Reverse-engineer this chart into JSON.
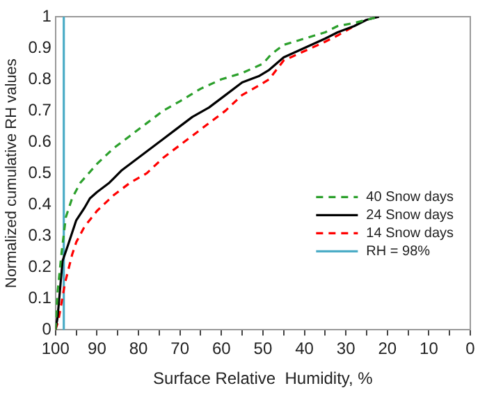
{
  "chart_data": {
    "type": "line",
    "xlabel": "Surface Relative  Humidity, %",
    "ylabel": "Normalized cumulative RH values",
    "xlim": [
      100,
      0
    ],
    "ylim": [
      0,
      1
    ],
    "xticks": [
      100,
      {
        "value": 95,
        "label": null
      },
      90,
      {
        "value": 85,
        "label": null
      },
      80,
      {
        "value": 75,
        "label": null
      },
      70,
      {
        "value": 65,
        "label": null
      },
      60,
      {
        "value": 55,
        "label": null
      },
      50,
      {
        "value": 45,
        "label": null
      },
      40,
      {
        "value": 35,
        "label": null
      },
      30,
      {
        "value": 25,
        "label": null
      },
      20,
      {
        "value": 15,
        "label": null
      },
      10,
      {
        "value": 5,
        "label": null
      },
      0
    ],
    "yticks": [
      0,
      0.1,
      0.2,
      0.3,
      0.4,
      0.5,
      0.6,
      0.7,
      0.8,
      0.9,
      1
    ],
    "grid": false,
    "legend": "bottom right",
    "marker": "none",
    "series": [
      {
        "name": "40 Snow days",
        "color": "#2ca02c",
        "line_style": "dashed",
        "x": [
          100,
          99.5,
          98.5,
          97.5,
          96,
          94,
          92,
          90,
          86,
          82,
          78,
          74,
          70,
          65,
          60,
          55,
          50,
          48,
          45,
          40,
          35,
          32,
          28,
          25,
          22
        ],
        "values": [
          0,
          0.12,
          0.25,
          0.36,
          0.42,
          0.47,
          0.5,
          0.53,
          0.58,
          0.62,
          0.66,
          0.7,
          0.73,
          0.77,
          0.8,
          0.82,
          0.85,
          0.88,
          0.91,
          0.93,
          0.95,
          0.97,
          0.98,
          0.99,
          1
        ]
      },
      {
        "name": "24 Snow days",
        "color": "#000000",
        "line_style": "solid",
        "x": [
          100,
          99.5,
          98.3,
          97,
          95,
          93,
          91.7,
          90,
          87,
          84,
          81,
          78,
          74,
          70,
          67,
          63,
          59,
          55,
          51,
          48.5,
          45,
          40,
          35,
          32,
          28,
          25,
          22
        ],
        "values": [
          0,
          0.04,
          0.22,
          0.27,
          0.35,
          0.39,
          0.42,
          0.44,
          0.47,
          0.51,
          0.54,
          0.57,
          0.61,
          0.65,
          0.68,
          0.71,
          0.75,
          0.79,
          0.81,
          0.83,
          0.87,
          0.9,
          0.93,
          0.95,
          0.97,
          0.99,
          1
        ]
      },
      {
        "name": "14 Snow days",
        "color": "#ff0000",
        "line_style": "dashed",
        "x": [
          100,
          99.3,
          97.7,
          96,
          95,
          93,
          90,
          86,
          82,
          78,
          74,
          70,
          67,
          63,
          59,
          55,
          51,
          48.5,
          45,
          40,
          35,
          32,
          28
        ],
        "values": [
          0,
          0.03,
          0.15,
          0.24,
          0.28,
          0.33,
          0.38,
          0.43,
          0.47,
          0.5,
          0.55,
          0.59,
          0.62,
          0.66,
          0.7,
          0.75,
          0.78,
          0.8,
          0.86,
          0.89,
          0.92,
          0.94,
          0.97
        ]
      },
      {
        "name": "RH = 98%",
        "color": "#4bacc6",
        "line_style": "solid",
        "x": [
          98,
          98
        ],
        "values": [
          0,
          1
        ]
      }
    ]
  }
}
